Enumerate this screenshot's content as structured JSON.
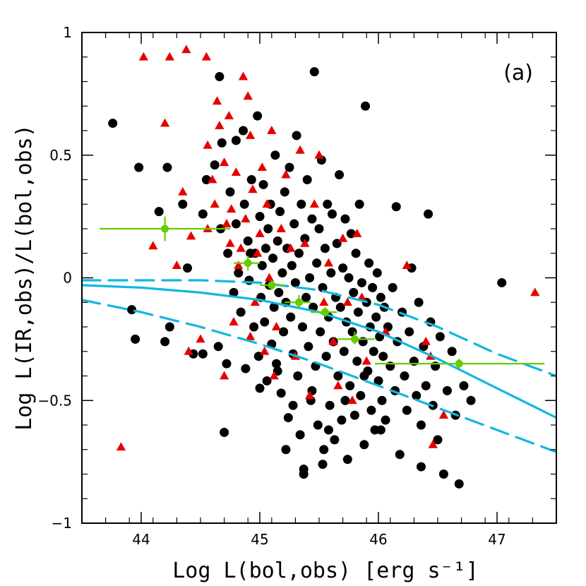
{
  "chart_data": {
    "type": "scatter",
    "title": "",
    "panel_label": "(a)",
    "xlabel": "Log L(bol,obs) [erg s⁻¹]",
    "ylabel": "Log L(IR,obs)/L(bol,obs)",
    "xlim": [
      43.5,
      47.5
    ],
    "ylim": [
      -1,
      1
    ],
    "x_ticks": [
      44,
      45,
      46,
      47
    ],
    "x_tick_labels": [
      "44",
      "45",
      "46",
      "47"
    ],
    "y_ticks": [
      -1,
      -0.5,
      0,
      0.5,
      1
    ],
    "y_tick_labels": [
      "−1",
      "−0.5",
      "0",
      "0.5",
      "1"
    ],
    "grid": false,
    "colors": {
      "circles": "#000000",
      "triangles": "#e60000",
      "binned": "#66cc00",
      "curves": "#10b8e0"
    },
    "series": [
      {
        "marker": "circle",
        "points": [
          [
            43.76,
            0.63
          ],
          [
            43.98,
            0.45
          ],
          [
            44.22,
            0.45
          ],
          [
            44.15,
            0.27
          ],
          [
            43.92,
            -0.13
          ],
          [
            43.95,
            -0.25
          ],
          [
            44.24,
            -0.2
          ],
          [
            44.2,
            -0.26
          ],
          [
            44.44,
            -0.31
          ],
          [
            44.52,
            -0.31
          ],
          [
            44.35,
            0.3
          ],
          [
            44.39,
            0.04
          ],
          [
            44.52,
            0.26
          ],
          [
            44.55,
            0.4
          ],
          [
            44.62,
            0.46
          ],
          [
            44.66,
            0.82
          ],
          [
            44.67,
            0.2
          ],
          [
            44.68,
            0.55
          ],
          [
            44.65,
            -0.28
          ],
          [
            44.7,
            -0.63
          ],
          [
            44.72,
            -0.35
          ],
          [
            44.73,
            0.1
          ],
          [
            44.75,
            0.35
          ],
          [
            44.78,
            -0.06
          ],
          [
            44.8,
            0.22
          ],
          [
            44.82,
            0.02
          ],
          [
            44.84,
            -0.14
          ],
          [
            44.86,
            0.6
          ],
          [
            44.87,
            0.3
          ],
          [
            44.88,
            -0.37
          ],
          [
            44.9,
            0.15
          ],
          [
            44.91,
            -0.01
          ],
          [
            44.93,
            0.4
          ],
          [
            44.95,
            -0.2
          ],
          [
            44.96,
            0.1
          ],
          [
            44.98,
            0.66
          ],
          [
            44.99,
            -0.32
          ],
          [
            45.0,
            0.25
          ],
          [
            45.01,
            -0.08
          ],
          [
            45.02,
            0.05
          ],
          [
            45.03,
            0.38
          ],
          [
            45.04,
            -0.18
          ],
          [
            45.05,
            0.12
          ],
          [
            45.06,
            -0.42
          ],
          [
            45.07,
            0.2
          ],
          [
            45.08,
            -0.03
          ],
          [
            45.09,
            0.3
          ],
          [
            45.1,
            -0.27
          ],
          [
            45.11,
            0.08
          ],
          [
            45.12,
            -0.12
          ],
          [
            45.13,
            0.5
          ],
          [
            45.14,
            -0.35
          ],
          [
            45.15,
            0.15
          ],
          [
            45.16,
            -0.06
          ],
          [
            45.17,
            0.27
          ],
          [
            45.18,
            -0.47
          ],
          [
            45.19,
            0.02
          ],
          [
            45.2,
            -0.22
          ],
          [
            45.21,
            0.35
          ],
          [
            45.22,
            -0.1
          ],
          [
            45.23,
            0.12
          ],
          [
            45.24,
            -0.57
          ],
          [
            45.25,
            0.45
          ],
          [
            45.26,
            -0.16
          ],
          [
            45.27,
            0.05
          ],
          [
            45.28,
            -0.31
          ],
          [
            45.29,
            0.22
          ],
          [
            45.3,
            -0.02
          ],
          [
            45.31,
            0.58
          ],
          [
            45.32,
            -0.4
          ],
          [
            45.33,
            0.1
          ],
          [
            45.34,
            -0.64
          ],
          [
            45.35,
            0.3
          ],
          [
            45.36,
            -0.2
          ],
          [
            45.37,
            -0.78
          ],
          [
            45.38,
            0.16
          ],
          [
            45.39,
            -0.08
          ],
          [
            45.4,
            0.4
          ],
          [
            45.41,
            -0.28
          ],
          [
            45.42,
            0.0
          ],
          [
            45.43,
            -0.5
          ],
          [
            45.44,
            0.24
          ],
          [
            45.45,
            -0.12
          ],
          [
            45.46,
            0.84
          ],
          [
            45.47,
            -0.36
          ],
          [
            45.48,
            0.06
          ],
          [
            45.49,
            -0.6
          ],
          [
            45.5,
            0.2
          ],
          [
            45.51,
            -0.22
          ],
          [
            45.52,
            0.48
          ],
          [
            45.53,
            -0.04
          ],
          [
            45.54,
            -0.7
          ],
          [
            45.55,
            0.12
          ],
          [
            45.56,
            -0.32
          ],
          [
            45.57,
            0.3
          ],
          [
            45.58,
            -0.16
          ],
          [
            45.59,
            -0.52
          ],
          [
            45.6,
            0.02
          ],
          [
            45.61,
            0.26
          ],
          [
            45.62,
            -0.26
          ],
          [
            45.63,
            -0.66
          ],
          [
            45.64,
            -0.08
          ],
          [
            45.65,
            0.14
          ],
          [
            45.66,
            -0.4
          ],
          [
            45.67,
            0.42
          ],
          [
            45.68,
            -0.12
          ],
          [
            45.69,
            -0.58
          ],
          [
            45.7,
            0.04
          ],
          [
            45.71,
            -0.3
          ],
          [
            45.72,
            0.24
          ],
          [
            45.73,
            -0.18
          ],
          [
            45.74,
            -0.74
          ],
          [
            45.75,
            0.0
          ],
          [
            45.76,
            -0.44
          ],
          [
            45.77,
            0.18
          ],
          [
            45.78,
            -0.22
          ],
          [
            45.79,
            -0.06
          ],
          [
            45.8,
            -0.56
          ],
          [
            45.81,
            0.1
          ],
          [
            45.82,
            -0.34
          ],
          [
            45.83,
            -0.14
          ],
          [
            45.84,
            0.3
          ],
          [
            45.85,
            -0.48
          ],
          [
            45.86,
            -0.02
          ],
          [
            45.87,
            -0.26
          ],
          [
            45.88,
            -0.68
          ],
          [
            45.89,
            0.7
          ],
          [
            45.9,
            -0.1
          ],
          [
            45.91,
            -0.38
          ],
          [
            45.92,
            0.06
          ],
          [
            45.93,
            -0.2
          ],
          [
            45.94,
            -0.54
          ],
          [
            45.95,
            -0.04
          ],
          [
            45.96,
            -0.3
          ],
          [
            45.97,
            -0.62
          ],
          [
            45.98,
            -0.16
          ],
          [
            45.99,
            0.02
          ],
          [
            46.0,
            -0.42
          ],
          [
            46.01,
            -0.24
          ],
          [
            46.02,
            -0.08
          ],
          [
            46.03,
            -0.5
          ],
          [
            46.04,
            -0.32
          ],
          [
            46.05,
            -0.12
          ],
          [
            46.06,
            -0.58
          ],
          [
            46.08,
            -0.2
          ],
          [
            46.1,
            -0.36
          ],
          [
            46.12,
            -0.04
          ],
          [
            46.14,
            -0.46
          ],
          [
            46.15,
            0.29
          ],
          [
            46.16,
            -0.26
          ],
          [
            46.18,
            -0.72
          ],
          [
            46.2,
            -0.14
          ],
          [
            46.22,
            -0.4
          ],
          [
            46.24,
            -0.54
          ],
          [
            46.26,
            -0.22
          ],
          [
            46.28,
            0.04
          ],
          [
            46.3,
            -0.34
          ],
          [
            46.32,
            -0.48
          ],
          [
            46.34,
            -0.1
          ],
          [
            46.36,
            -0.6
          ],
          [
            46.38,
            -0.28
          ],
          [
            46.4,
            -0.44
          ],
          [
            46.42,
            0.26
          ],
          [
            46.44,
            -0.18
          ],
          [
            46.46,
            -0.52
          ],
          [
            46.48,
            -0.36
          ],
          [
            46.5,
            -0.66
          ],
          [
            46.52,
            -0.24
          ],
          [
            46.55,
            -0.8
          ],
          [
            46.58,
            -0.46
          ],
          [
            46.62,
            -0.3
          ],
          [
            46.65,
            -0.56
          ],
          [
            46.68,
            -0.84
          ],
          [
            46.72,
            -0.44
          ],
          [
            46.78,
            -0.5
          ],
          [
            47.04,
            -0.02
          ],
          [
            46.36,
            -0.77
          ],
          [
            45.37,
            -0.8
          ],
          [
            45.22,
            -0.7
          ],
          [
            45.53,
            -0.76
          ],
          [
            44.8,
            0.56
          ],
          [
            44.92,
            0.1
          ],
          [
            45.0,
            -0.45
          ],
          [
            45.15,
            -0.38
          ],
          [
            45.28,
            -0.52
          ],
          [
            45.44,
            -0.46
          ],
          [
            45.58,
            -0.62
          ],
          [
            45.72,
            -0.5
          ],
          [
            45.88,
            -0.4
          ],
          [
            46.02,
            -0.62
          ]
        ]
      },
      {
        "marker": "triangle",
        "points": [
          [
            44.02,
            0.9
          ],
          [
            44.24,
            0.9
          ],
          [
            44.38,
            0.93
          ],
          [
            44.55,
            0.9
          ],
          [
            44.2,
            0.63
          ],
          [
            44.1,
            0.13
          ],
          [
            44.35,
            0.35
          ],
          [
            44.42,
            0.17
          ],
          [
            43.83,
            -0.69
          ],
          [
            44.5,
            -0.25
          ],
          [
            44.56,
            0.54
          ],
          [
            44.6,
            0.4
          ],
          [
            44.62,
            0.3
          ],
          [
            44.64,
            0.72
          ],
          [
            44.66,
            0.62
          ],
          [
            44.7,
            0.47
          ],
          [
            44.72,
            0.22
          ],
          [
            44.74,
            0.66
          ],
          [
            44.76,
            0.28
          ],
          [
            44.78,
            -0.18
          ],
          [
            44.8,
            0.43
          ],
          [
            44.82,
            0.05
          ],
          [
            44.84,
            0.12
          ],
          [
            44.86,
            0.82
          ],
          [
            44.88,
            0.24
          ],
          [
            44.9,
            0.74
          ],
          [
            44.92,
            0.58
          ],
          [
            44.94,
            0.36
          ],
          [
            44.96,
            -0.1
          ],
          [
            44.98,
            0.1
          ],
          [
            45.0,
            0.18
          ],
          [
            45.02,
            0.45
          ],
          [
            45.04,
            -0.3
          ],
          [
            45.06,
            0.3
          ],
          [
            45.08,
            0.0
          ],
          [
            45.1,
            0.6
          ],
          [
            45.14,
            -0.2
          ],
          [
            45.18,
            0.2
          ],
          [
            45.22,
            0.42
          ],
          [
            45.26,
            0.12
          ],
          [
            45.3,
            -0.32
          ],
          [
            45.34,
            0.52
          ],
          [
            45.38,
            0.14
          ],
          [
            45.42,
            -0.48
          ],
          [
            45.46,
            0.3
          ],
          [
            45.5,
            0.5
          ],
          [
            45.54,
            -0.1
          ],
          [
            45.58,
            0.06
          ],
          [
            45.62,
            -0.26
          ],
          [
            45.66,
            -0.44
          ],
          [
            45.7,
            0.16
          ],
          [
            45.74,
            -0.1
          ],
          [
            45.78,
            -0.5
          ],
          [
            45.82,
            0.18
          ],
          [
            45.86,
            -0.08
          ],
          [
            45.9,
            -0.34
          ],
          [
            46.06,
            -0.22
          ],
          [
            46.24,
            0.05
          ],
          [
            46.4,
            -0.26
          ],
          [
            46.44,
            -0.32
          ],
          [
            46.46,
            -0.68
          ],
          [
            46.55,
            -0.56
          ],
          [
            47.32,
            -0.06
          ],
          [
            44.4,
            -0.3
          ],
          [
            44.7,
            -0.4
          ],
          [
            44.56,
            0.2
          ],
          [
            44.3,
            0.05
          ],
          [
            44.75,
            0.14
          ],
          [
            44.92,
            -0.24
          ],
          [
            45.12,
            -0.4
          ]
        ]
      },
      {
        "name": "",
        "marker": "binned",
        "points": [
          {
            "x": 44.2,
            "y": 0.2,
            "xlo": 43.65,
            "xhi": 44.75,
            "ylo": 0.15,
            "yhi": 0.25
          },
          {
            "x": 44.9,
            "y": 0.06,
            "xlo": 44.78,
            "xhi": 45.0,
            "ylo": 0.03,
            "yhi": 0.09
          },
          {
            "x": 45.1,
            "y": -0.03,
            "xlo": 45.0,
            "xhi": 45.21,
            "ylo": -0.05,
            "yhi": -0.01
          },
          {
            "x": 45.33,
            "y": -0.1,
            "xlo": 45.21,
            "xhi": 45.43,
            "ylo": -0.12,
            "yhi": -0.07
          },
          {
            "x": 45.55,
            "y": -0.14,
            "xlo": 45.43,
            "xhi": 45.65,
            "ylo": -0.16,
            "yhi": -0.12
          },
          {
            "x": 45.8,
            "y": -0.25,
            "xlo": 45.65,
            "xhi": 45.97,
            "ylo": -0.27,
            "yhi": -0.22
          },
          {
            "x": 46.68,
            "y": -0.35,
            "xlo": 45.97,
            "xhi": 47.4,
            "ylo": -0.37,
            "yhi": -0.33
          }
        ]
      },
      {
        "marker": "line-solid",
        "points": [
          [
            43.5,
            -0.03
          ],
          [
            44.0,
            -0.04
          ],
          [
            44.5,
            -0.06
          ],
          [
            45.0,
            -0.09
          ],
          [
            45.5,
            -0.14
          ],
          [
            46.0,
            -0.22
          ],
          [
            46.5,
            -0.33
          ],
          [
            47.0,
            -0.45
          ],
          [
            47.5,
            -0.57
          ]
        ]
      },
      {
        "marker": "line-dashed",
        "points": [
          [
            43.5,
            -0.01
          ],
          [
            44.0,
            -0.01
          ],
          [
            44.5,
            -0.01
          ],
          [
            45.0,
            -0.02
          ],
          [
            45.5,
            -0.05
          ],
          [
            46.0,
            -0.11
          ],
          [
            46.5,
            -0.2
          ],
          [
            47.0,
            -0.31
          ],
          [
            47.5,
            -0.4
          ]
        ]
      },
      {
        "marker": "line-dashed",
        "points": [
          [
            43.5,
            -0.09
          ],
          [
            44.0,
            -0.14
          ],
          [
            44.5,
            -0.2
          ],
          [
            45.0,
            -0.27
          ],
          [
            45.5,
            -0.35
          ],
          [
            46.0,
            -0.44
          ],
          [
            46.5,
            -0.53
          ],
          [
            47.0,
            -0.62
          ],
          [
            47.5,
            -0.71
          ]
        ]
      }
    ]
  }
}
